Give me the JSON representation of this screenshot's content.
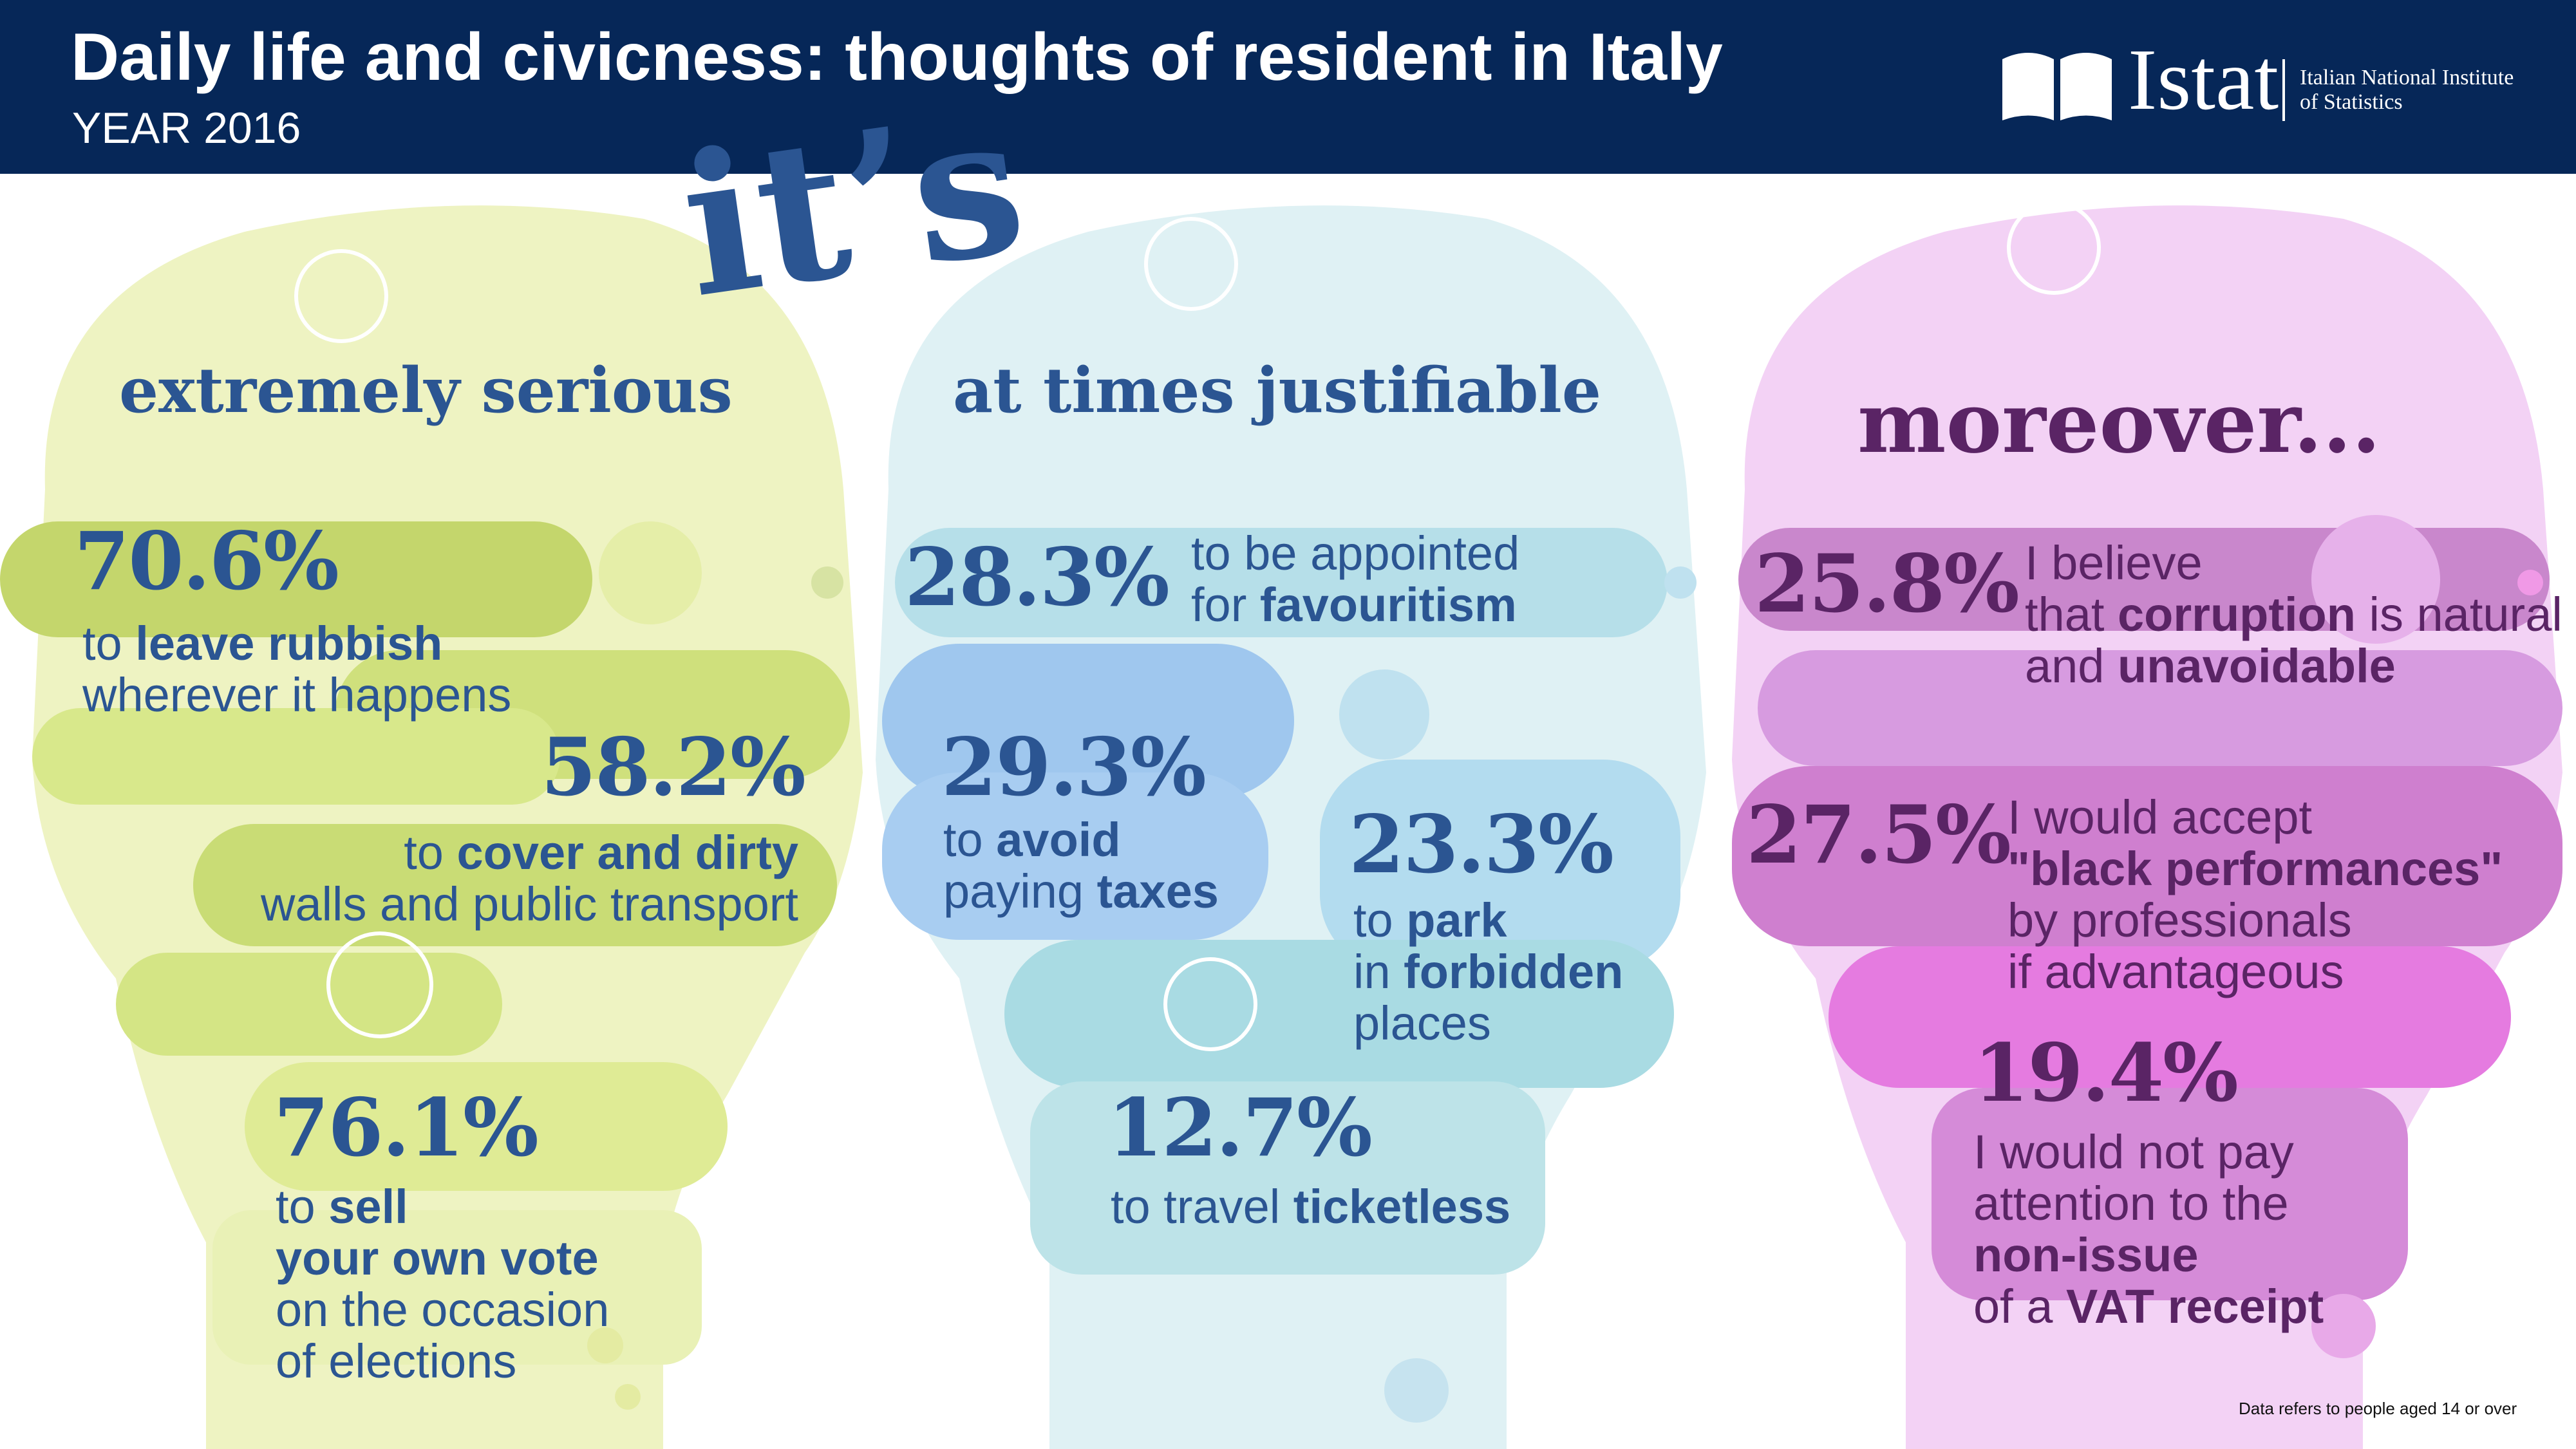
{
  "header": {
    "title": "Daily life and civicness: thoughts of resident in Italy",
    "subtitle": "YEAR 2016",
    "logo_name": "Istat",
    "logo_caption_line1": "Italian National Institute",
    "logo_caption_line2": "of Statistics"
  },
  "colors": {
    "header_bg": "#062758",
    "blue_text": "#2b5592",
    "purple_text": "#5a2465",
    "head1": "#d8e57d",
    "head2": "#a9d6ea",
    "head3": "#e07ad8"
  },
  "intro": "it’s",
  "panels": [
    {
      "heading": "extremely serious",
      "items": [
        {
          "value": "70.6%",
          "lines": [
            [
              "to ",
              "leave rubbish"
            ],
            [
              "wherever it happens",
              ""
            ]
          ]
        },
        {
          "value": "58.2%",
          "lines": [
            [
              "to ",
              "cover and dirty"
            ],
            [
              "walls and public transport",
              ""
            ]
          ]
        },
        {
          "value": "76.1%",
          "lines": [
            [
              "to ",
              "sell"
            ],
            [
              "",
              "your own vote"
            ],
            [
              "on the occasion",
              ""
            ],
            [
              "of elections",
              ""
            ]
          ]
        }
      ]
    },
    {
      "heading": "at times justifiable",
      "items": [
        {
          "value": "28.3%",
          "lines": [
            [
              "to be appointed",
              ""
            ],
            [
              "for ",
              "favouritism"
            ]
          ]
        },
        {
          "value": "29.3%",
          "lines": [
            [
              "to ",
              "avoid"
            ],
            [
              "paying ",
              "taxes"
            ]
          ]
        },
        {
          "value": "23.3%",
          "lines": [
            [
              "to ",
              "park"
            ],
            [
              "in ",
              "forbidden"
            ],
            [
              "places",
              ""
            ]
          ]
        },
        {
          "value": "12.7%",
          "lines": [
            [
              "to travel ",
              "ticketless"
            ]
          ]
        }
      ]
    },
    {
      "heading": "moreover...",
      "items": [
        {
          "value": "25.8%",
          "lines": [
            [
              "I believe",
              ""
            ],
            [
              "that ",
              "corruption",
              " is natural"
            ],
            [
              "and ",
              "unavoidable"
            ]
          ]
        },
        {
          "value": "27.5%",
          "lines": [
            [
              "I would accept",
              ""
            ],
            [
              "",
              "\"black performances\""
            ],
            [
              "by professionals",
              ""
            ],
            [
              "if advantageous",
              ""
            ]
          ]
        },
        {
          "value": "19.4%",
          "lines": [
            [
              "I would not pay",
              ""
            ],
            [
              "attention to the",
              ""
            ],
            [
              "",
              "non-issue"
            ],
            [
              "of a ",
              "VAT receipt"
            ]
          ]
        }
      ]
    }
  ],
  "footnote": "Data refers to people aged 14 or over"
}
